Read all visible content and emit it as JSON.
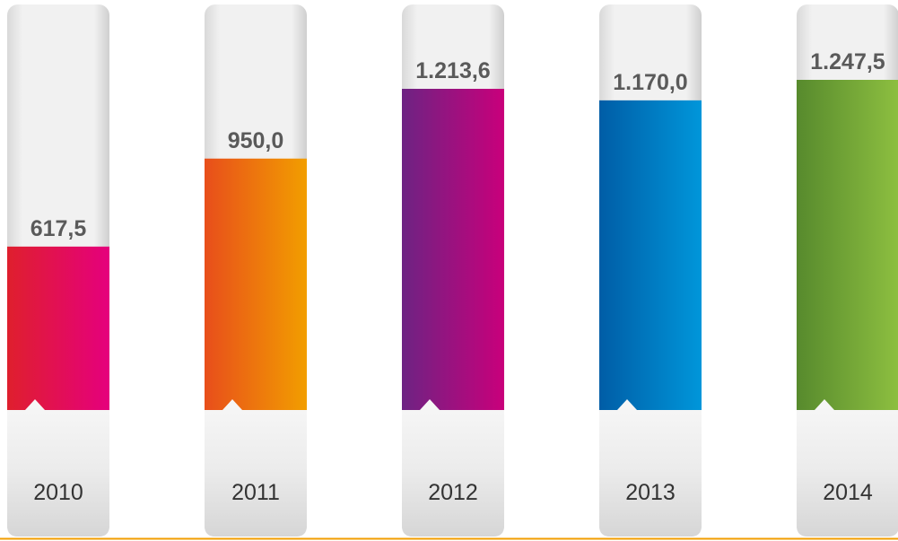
{
  "chart_data": {
    "type": "bar",
    "categories": [
      "2010",
      "2011",
      "2012",
      "2013",
      "2014"
    ],
    "values": [
      617.5,
      950,
      1213.6,
      1170,
      1247.5
    ],
    "value_labels": [
      "617,5",
      "950,0",
      "1.213,6",
      "1.170,0",
      "1.247,5"
    ],
    "colors": [
      [
        "#df1f2d",
        "#e5007d"
      ],
      [
        "#e84e1b",
        "#f29e00"
      ],
      [
        "#6d2383",
        "#c9007b"
      ],
      [
        "#005da6",
        "#0096da"
      ],
      [
        "#578a2d",
        "#8dbf40"
      ]
    ]
  }
}
